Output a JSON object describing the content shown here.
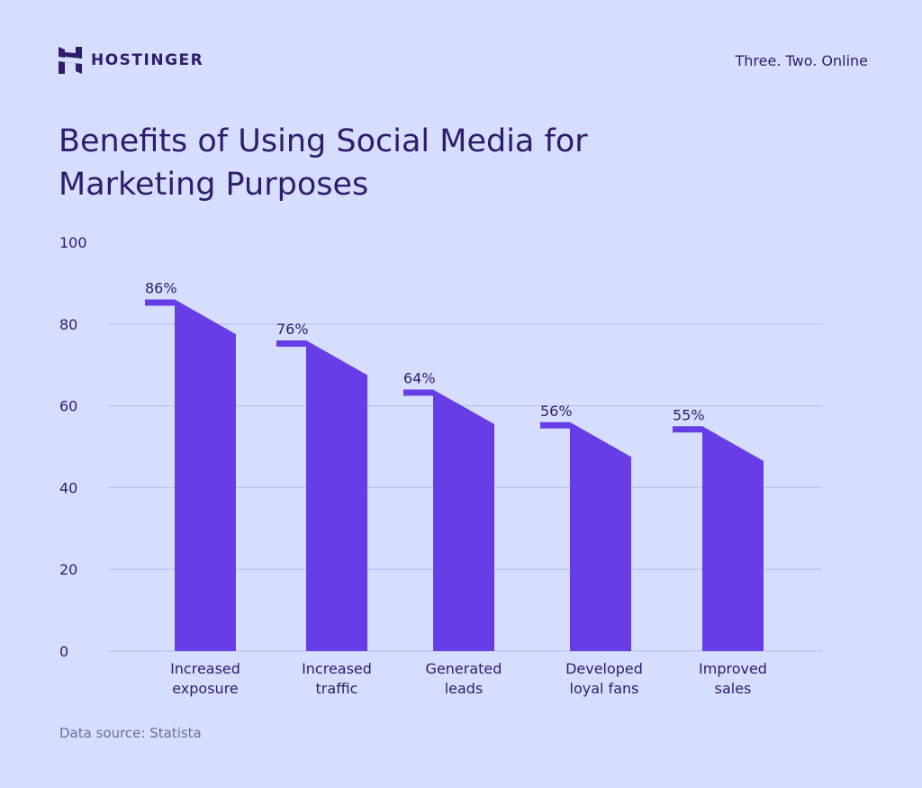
{
  "brand": {
    "name": "HOSTINGER",
    "tagline": "Three. Two. Online"
  },
  "colors": {
    "background": "#d5defd",
    "bar": "#673de6",
    "text": "#2f1c6a",
    "grid": "#b3bdf0"
  },
  "footer": {
    "source": "Data source: Statista"
  },
  "chart_data": {
    "type": "bar",
    "title": "Benefits of Using Social Media for Marketing Purposes",
    "categories": [
      [
        "Increased",
        "exposure"
      ],
      [
        "Increased",
        "traffic"
      ],
      [
        "Generated",
        "leads"
      ],
      [
        "Developed",
        "loyal fans"
      ],
      [
        "Improved",
        "sales"
      ]
    ],
    "values": [
      86,
      76,
      64,
      56,
      55
    ],
    "data_labels": [
      "86%",
      "76%",
      "64%",
      "56%",
      "55%"
    ],
    "yticks": [
      0,
      20,
      40,
      60,
      80,
      100
    ],
    "ylim": [
      0,
      100
    ],
    "grid": true,
    "xlabel": "",
    "ylabel": ""
  }
}
